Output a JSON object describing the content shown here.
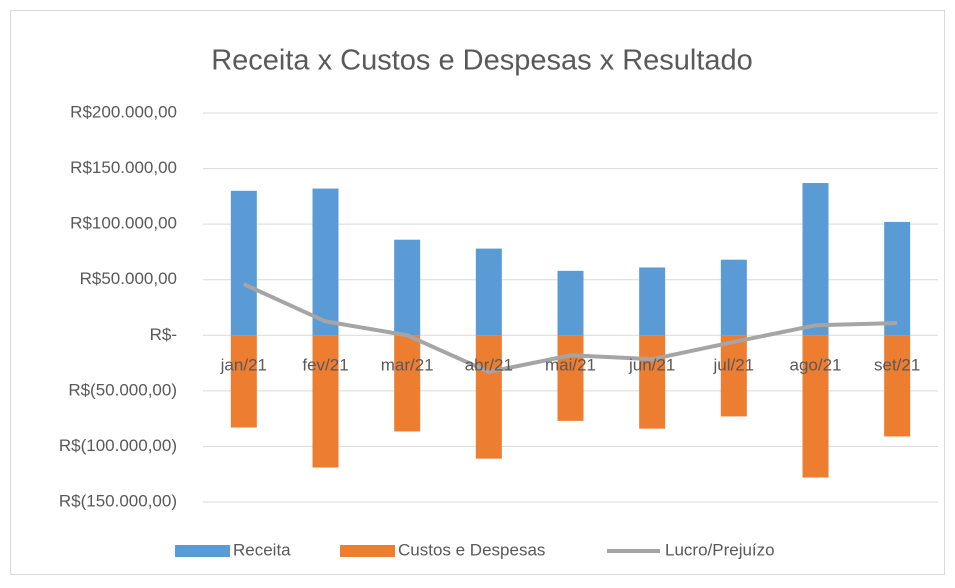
{
  "chart_data": {
    "type": "bar",
    "title": "Receita x Custos e Despesas x Resultado",
    "categories": [
      "jan/21",
      "fev/21",
      "mar/21",
      "abr/21",
      "mai/21",
      "jun/21",
      "jul/21",
      "ago/21",
      "set/21"
    ],
    "series": [
      {
        "name": "Receita",
        "color": "#5b9bd5",
        "values": [
          130000,
          132000,
          86000,
          78000,
          58000,
          61000,
          68000,
          137000,
          102000
        ]
      },
      {
        "name": "Custos e Despesas",
        "color": "#ed7d31",
        "values": [
          -83000,
          -119000,
          -86500,
          -111000,
          -77000,
          -84000,
          -73000,
          -128000,
          -91000
        ]
      },
      {
        "name": "Lucro/Prejuízo",
        "color": "#a5a5a5",
        "type": "line",
        "values": [
          46000,
          12500,
          0,
          -33000,
          -18000,
          -21500,
          -6000,
          9000,
          11000
        ]
      }
    ],
    "ylim": [
      -150000,
      200000
    ],
    "yticks": [
      {
        "value": -150000,
        "label": "R$(150.000,00)"
      },
      {
        "value": -100000,
        "label": "R$(100.000,00)"
      },
      {
        "value": -50000,
        "label": "R$(50.000,00)"
      },
      {
        "value": 0,
        "label": "R$-"
      },
      {
        "value": 50000,
        "label": "R$50.000,00"
      },
      {
        "value": 100000,
        "label": "R$100.000,00"
      },
      {
        "value": 150000,
        "label": "R$150.000,00"
      },
      {
        "value": 200000,
        "label": "R$200.000,00"
      }
    ],
    "grid": true,
    "legend": "bottom"
  }
}
